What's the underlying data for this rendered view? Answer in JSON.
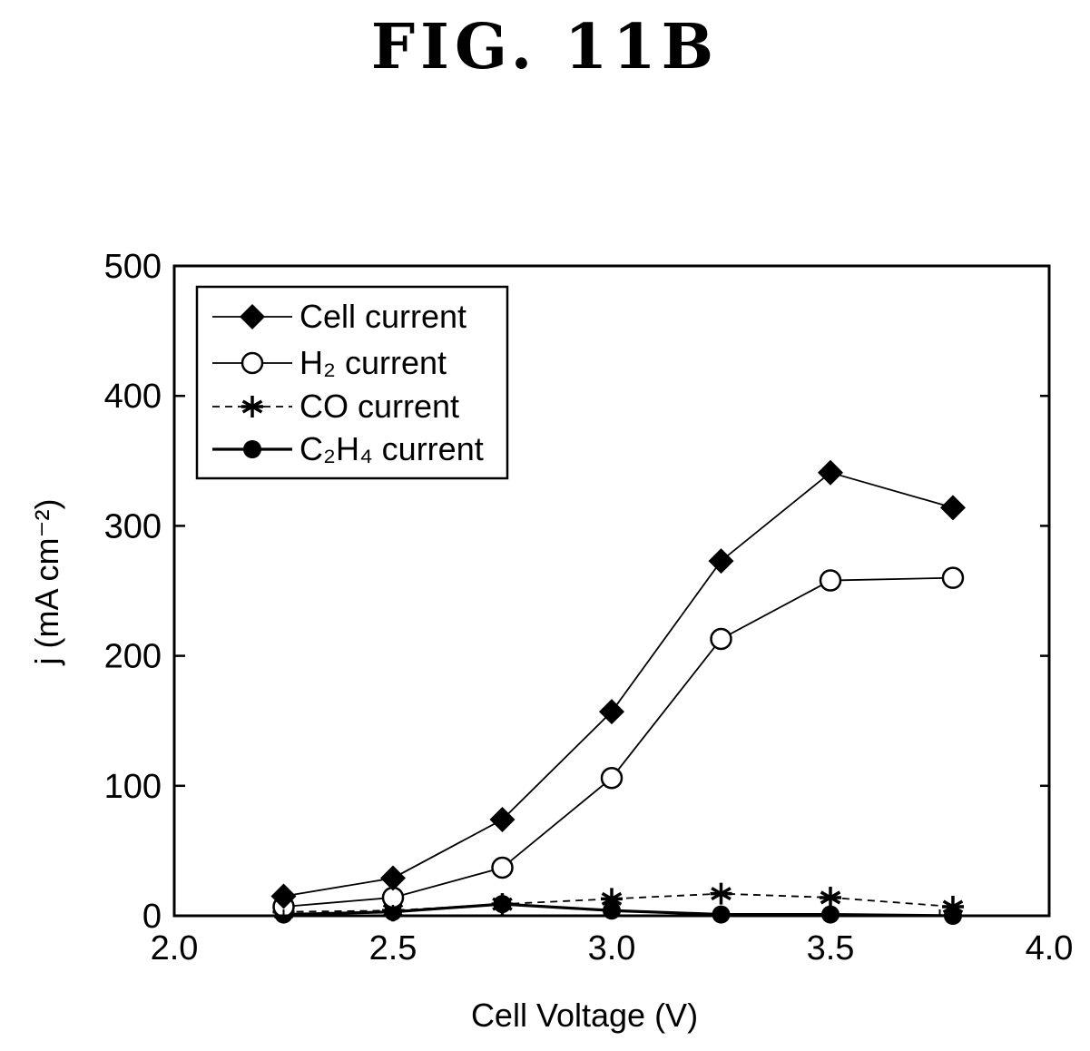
{
  "figure_title": "FIG. 11B",
  "chart_data": {
    "type": "line",
    "xlabel": "Cell Voltage (V)",
    "ylabel": "j (mA cm⁻²)",
    "xlim": [
      2.0,
      4.0
    ],
    "ylim": [
      0,
      500
    ],
    "xticks": [
      "2.0",
      "2.5",
      "3.0",
      "3.5",
      "4.0"
    ],
    "yticks": [
      "0",
      "100",
      "200",
      "300",
      "400",
      "500"
    ],
    "xtick_values": [
      2.0,
      2.5,
      3.0,
      3.5,
      4.0
    ],
    "ytick_values": [
      0,
      100,
      200,
      300,
      400,
      500
    ],
    "grid": false,
    "legend_position": "top-left",
    "x": [
      2.25,
      2.5,
      2.75,
      3.0,
      3.25,
      3.5,
      3.78
    ],
    "series": [
      {
        "name": "Cell current",
        "marker": "diamond-filled",
        "line": "solid-thin",
        "values": [
          15,
          29,
          74,
          157,
          273,
          341,
          314
        ]
      },
      {
        "name": "H₂ current",
        "marker": "circle-open",
        "line": "solid-thin",
        "values": [
          7,
          14,
          37,
          106,
          213,
          258,
          260
        ]
      },
      {
        "name": "CO current",
        "marker": "asterisk",
        "line": "dashed",
        "values": [
          3,
          4,
          9,
          13,
          17,
          14,
          7
        ]
      },
      {
        "name": "C₂H₄ current",
        "marker": "circle-filled",
        "line": "solid-thick",
        "values": [
          1,
          3,
          9,
          4,
          1,
          1,
          0
        ]
      }
    ]
  }
}
